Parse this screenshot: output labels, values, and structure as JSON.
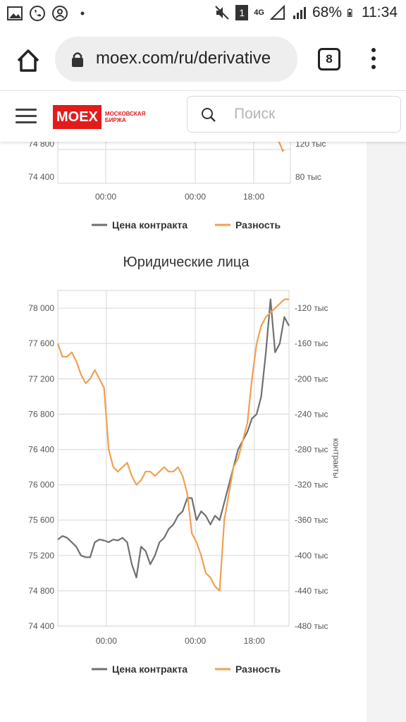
{
  "status": {
    "battery": "68%",
    "time": "11:34",
    "network": "4G",
    "sim": "1"
  },
  "browser": {
    "url": "moex.com/ru/derivative",
    "tab_count": "8"
  },
  "site": {
    "logo_text": "MOEX",
    "logo_subtitle_line1": "МОСКОВСКАЯ",
    "logo_subtitle_line2": "БИРЖА",
    "search_placeholder": "Поиск"
  },
  "colors": {
    "price_series": "#707070",
    "diff_series": "#f0a050",
    "brand": "#e21b1b"
  },
  "chart_data": [
    {
      "type": "line",
      "title": "",
      "partially_visible": true,
      "x_ticks": [
        "00:00",
        "00:00",
        "18:00"
      ],
      "y_left_ticks": [
        "74 800",
        "74 400"
      ],
      "y_right_ticks": [
        "120 тыс",
        "80 тыс"
      ],
      "legend": [
        "Цена контракта",
        "Разность"
      ],
      "grid": true
    },
    {
      "type": "line",
      "title": "Юридические лица",
      "x_ticks": [
        "00:00",
        "00:00",
        "18:00"
      ],
      "y_left_ticks": [
        "78 000",
        "77 600",
        "77 200",
        "76 800",
        "76 400",
        "76 000",
        "75 600",
        "75 200",
        "74 800",
        "74 400"
      ],
      "y_right_ticks": [
        "-120 тыс",
        "-160 тыс",
        "-200 тыс",
        "-240 тыс",
        "-280 тыс",
        "-320 тыс",
        "-360 тыс",
        "-400 тыс",
        "-440 тыс",
        "-480 тыс"
      ],
      "y_left_range": [
        74400,
        78200
      ],
      "y_right_range": [
        -480000,
        -100000
      ],
      "y_right_label": "контракты",
      "legend": [
        "Цена контракта",
        "Разность"
      ],
      "grid": true,
      "series": [
        {
          "name": "Цена контракта",
          "axis": "left",
          "color": "#707070",
          "x": [
            0,
            0.02,
            0.04,
            0.06,
            0.08,
            0.1,
            0.12,
            0.14,
            0.16,
            0.18,
            0.2,
            0.22,
            0.24,
            0.26,
            0.28,
            0.3,
            0.32,
            0.34,
            0.36,
            0.38,
            0.4,
            0.42,
            0.44,
            0.46,
            0.48,
            0.5,
            0.52,
            0.54,
            0.56,
            0.58,
            0.6,
            0.62,
            0.64,
            0.66,
            0.68,
            0.7,
            0.72,
            0.74,
            0.76,
            0.78,
            0.8,
            0.82,
            0.84,
            0.86,
            0.88,
            0.9,
            0.92,
            0.94,
            0.96,
            0.98,
            1.0
          ],
          "values": [
            75380,
            75420,
            75400,
            75350,
            75300,
            75200,
            75180,
            75180,
            75350,
            75380,
            75370,
            75350,
            75380,
            75370,
            75400,
            75350,
            75100,
            74950,
            75300,
            75250,
            75100,
            75200,
            75350,
            75400,
            75500,
            75550,
            75650,
            75700,
            75850,
            75850,
            75600,
            75700,
            75650,
            75550,
            75650,
            75600,
            75800,
            76000,
            76200,
            76400,
            76500,
            76600,
            76750,
            76800,
            77000,
            77500,
            78100,
            77500,
            77600,
            77900,
            77800
          ]
        },
        {
          "name": "Разность",
          "axis": "right",
          "color": "#f0a050",
          "x": [
            0,
            0.02,
            0.04,
            0.06,
            0.08,
            0.1,
            0.12,
            0.14,
            0.16,
            0.18,
            0.2,
            0.22,
            0.24,
            0.26,
            0.28,
            0.3,
            0.32,
            0.34,
            0.36,
            0.38,
            0.4,
            0.42,
            0.44,
            0.46,
            0.48,
            0.5,
            0.52,
            0.54,
            0.56,
            0.58,
            0.6,
            0.62,
            0.64,
            0.66,
            0.68,
            0.7,
            0.72,
            0.74,
            0.76,
            0.78,
            0.8,
            0.82,
            0.84,
            0.86,
            0.88,
            0.9,
            0.92,
            0.94,
            0.96,
            0.98,
            1.0
          ],
          "values": [
            -160000,
            -175000,
            -175000,
            -170000,
            -180000,
            -195000,
            -205000,
            -200000,
            -190000,
            -200000,
            -210000,
            -280000,
            -300000,
            -305000,
            -300000,
            -295000,
            -310000,
            -320000,
            -315000,
            -305000,
            -305000,
            -310000,
            -305000,
            -300000,
            -305000,
            -305000,
            -300000,
            -310000,
            -330000,
            -375000,
            -385000,
            -400000,
            -420000,
            -425000,
            -435000,
            -440000,
            -360000,
            -330000,
            -300000,
            -290000,
            -270000,
            -250000,
            -200000,
            -160000,
            -140000,
            -130000,
            -125000,
            -120000,
            -115000,
            -110000,
            -110000
          ]
        }
      ]
    }
  ]
}
